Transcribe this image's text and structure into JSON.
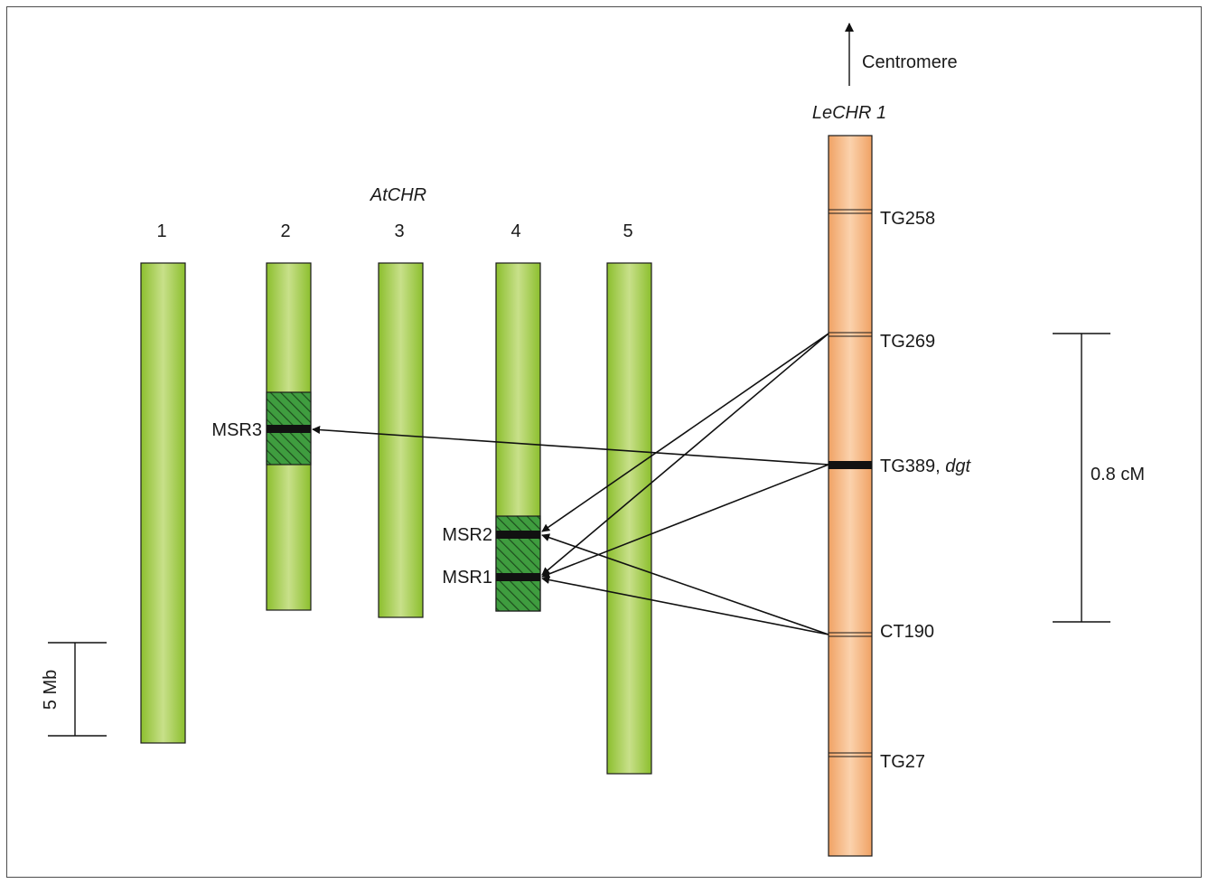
{
  "at_group_label": "AtCHR",
  "at_chromosomes": [
    {
      "id": "1",
      "label": "1"
    },
    {
      "id": "2",
      "label": "2"
    },
    {
      "id": "3",
      "label": "3"
    },
    {
      "id": "4",
      "label": "4"
    },
    {
      "id": "5",
      "label": "5"
    }
  ],
  "msr_regions": [
    {
      "label": "MSR3",
      "chromosome": "2"
    },
    {
      "label": "MSR2",
      "chromosome": "4"
    },
    {
      "label": "MSR1",
      "chromosome": "4"
    }
  ],
  "le_chromosome": {
    "label": "LeCHR 1",
    "centromere_label": "Centromere",
    "markers": [
      {
        "label": "TG258",
        "label_suffix": ""
      },
      {
        "label": "TG269",
        "label_suffix": ""
      },
      {
        "label": "TG389, ",
        "label_suffix": "dgt"
      },
      {
        "label": "CT190",
        "label_suffix": ""
      },
      {
        "label": "TG27",
        "label_suffix": ""
      }
    ]
  },
  "links": [
    {
      "from": "TG389, dgt",
      "to": "MSR3"
    },
    {
      "from": "TG269",
      "to": "MSR2"
    },
    {
      "from": "TG269",
      "to": "MSR1"
    },
    {
      "from": "TG389, dgt",
      "to": "MSR1"
    },
    {
      "from": "CT190",
      "to": "MSR2"
    },
    {
      "from": "CT190",
      "to": "MSR1"
    }
  ],
  "scale_bars": [
    {
      "label": "5 Mb"
    },
    {
      "label": "0.8 cM"
    }
  ]
}
